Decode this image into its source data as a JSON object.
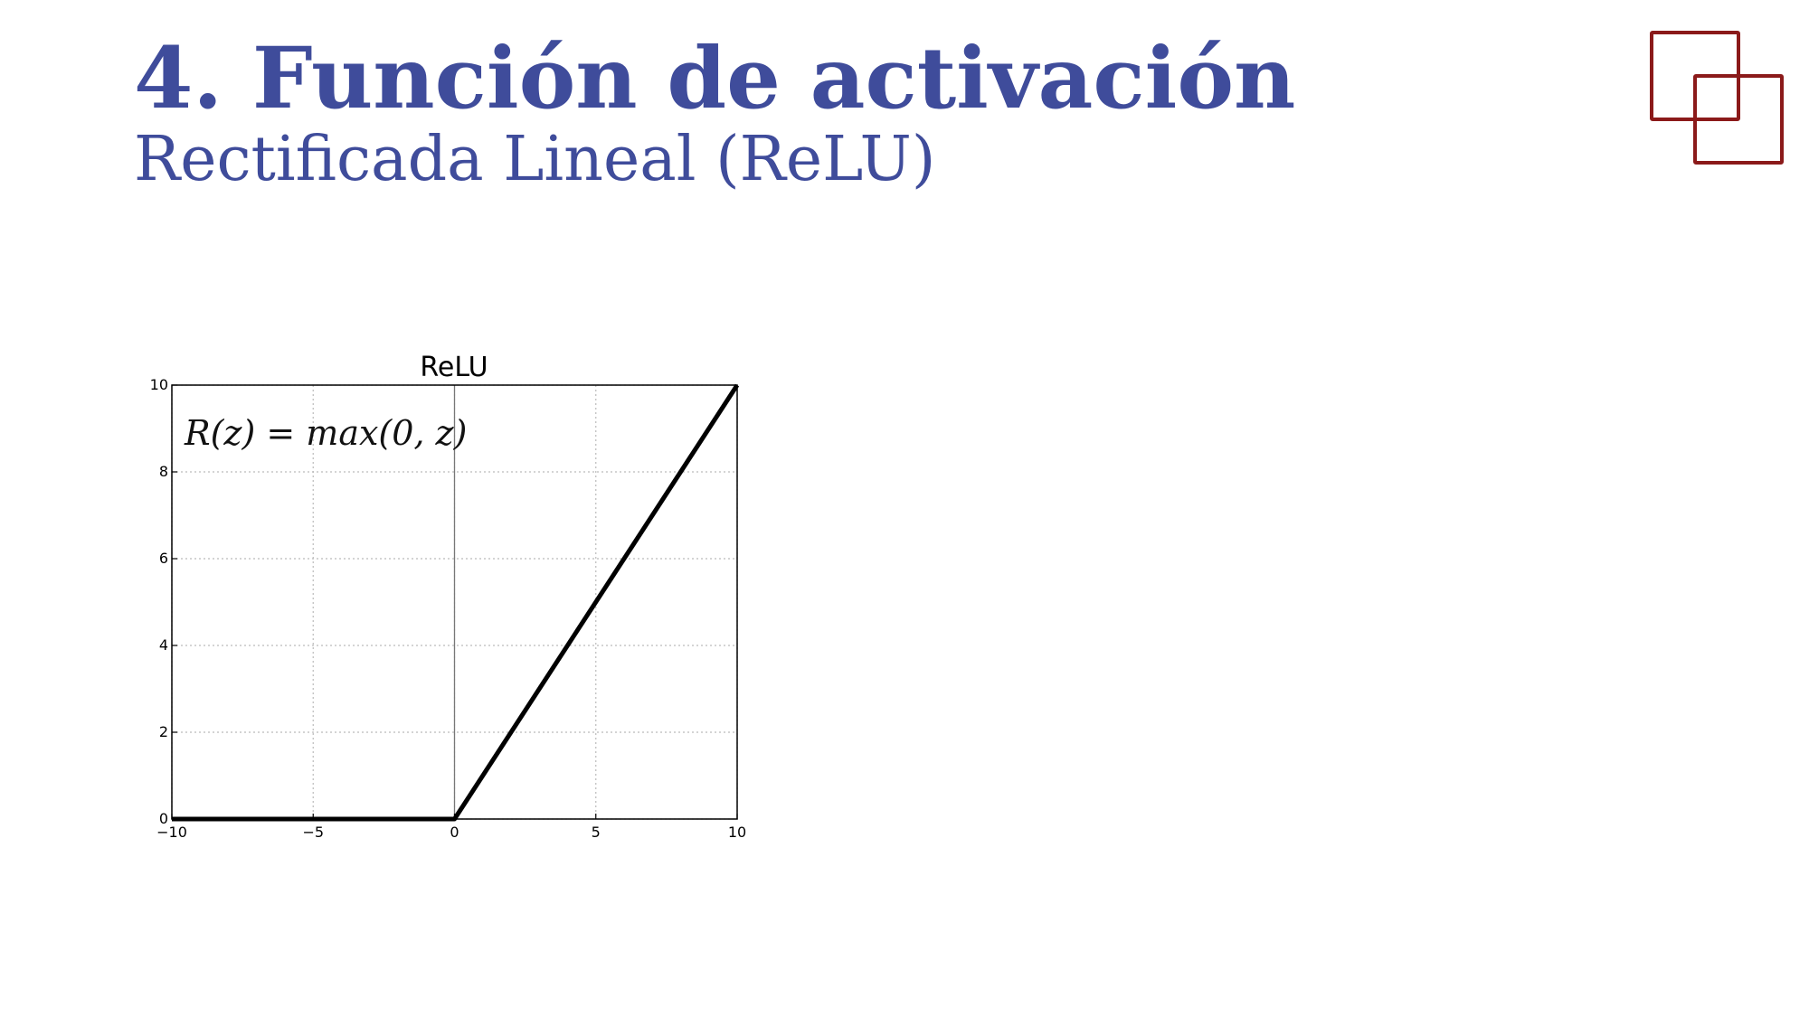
{
  "slide": {
    "title": "4. Función de activación",
    "subtitle": "Rectificada Lineal (ReLU)"
  },
  "logo": {
    "name": "overlapping-squares-logo",
    "color": "#8b1a1a"
  },
  "colors": {
    "heading": "#3f4c9b",
    "line": "#000000",
    "grid": "#bbbbbb"
  },
  "chart_data": {
    "type": "line",
    "title": "ReLU",
    "annotation": "R(z) = max(0,  z)",
    "xlim": [
      -10,
      10
    ],
    "ylim": [
      0,
      10
    ],
    "xticks": [
      -10,
      -5,
      0,
      5,
      10
    ],
    "xtick_labels": [
      "−10",
      "−5",
      "0",
      "5",
      "10"
    ],
    "yticks": [
      0,
      2,
      4,
      6,
      8,
      10
    ],
    "ytick_labels": [
      "0",
      "2",
      "4",
      "6",
      "8",
      "10"
    ],
    "grid": true,
    "vline_x": 0,
    "series": [
      {
        "x": [
          -10,
          0,
          10
        ],
        "y": [
          0,
          0,
          10
        ]
      }
    ]
  }
}
